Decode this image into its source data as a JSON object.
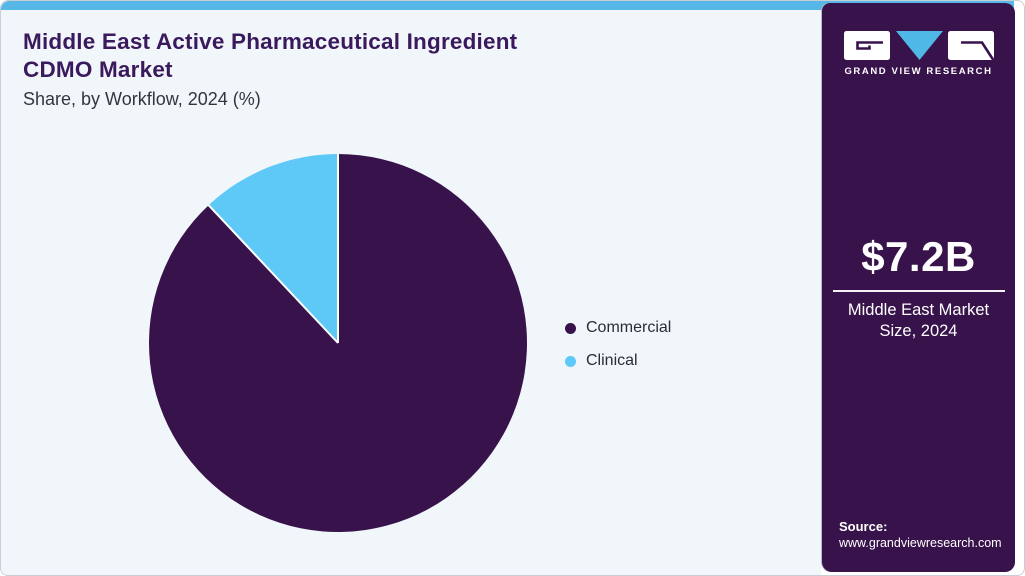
{
  "header": {
    "title_line1": "Middle East Active Pharmaceutical Ingredient",
    "title_line2": "CDMO Market",
    "subtitle": "Share, by Workflow, 2024 (%)"
  },
  "chart_data": {
    "type": "pie",
    "title": "Middle East Active Pharmaceutical Ingredient CDMO Market Share, by Workflow, 2024 (%)",
    "unit": "%",
    "categories": [
      "Commercial",
      "Clinical"
    ],
    "values": [
      88,
      12
    ],
    "slices": [
      {
        "label": "Commercial",
        "value": 88,
        "color": "#38124b"
      },
      {
        "label": "Clinical",
        "value": 12,
        "color": "#5ec8f7"
      }
    ],
    "start_angle_deg": -90,
    "direction": "clockwise",
    "legend_position": "right",
    "separator_color": "#ffffff"
  },
  "sidebar": {
    "logo_text": "GRAND VIEW RESEARCH",
    "stat_value": "$7.2B",
    "stat_label_line1": "Middle East Market",
    "stat_label_line2": "Size, 2024",
    "source_label": "Source:",
    "source_url": "www.grandviewresearch.com"
  },
  "theme": {
    "topbar_blue": "#57b8e8",
    "main_background": "#f1f6fb",
    "sidebar_purple": "#38124b",
    "logo_triangle_blue": "#4fb8e6"
  }
}
